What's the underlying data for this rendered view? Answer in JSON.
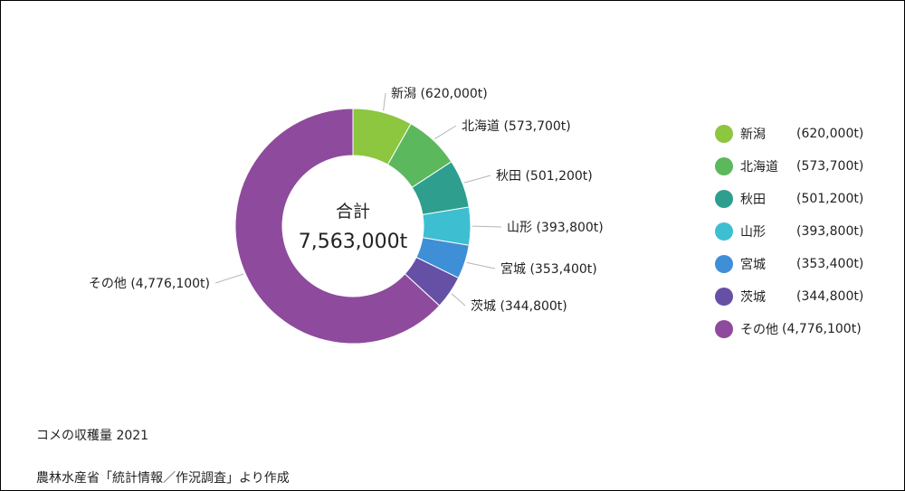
{
  "chart_data": {
    "type": "pie",
    "center_label": "合計",
    "total_label": "7,563,000t",
    "slices": [
      {
        "name": "新潟",
        "value": 620000,
        "value_label": "(620,000t)",
        "color": "#8dc63f"
      },
      {
        "name": "北海道",
        "value": 573700,
        "value_label": "(573,700t)",
        "color": "#5cb85c"
      },
      {
        "name": "秋田",
        "value": 501200,
        "value_label": "(501,200t)",
        "color": "#2e9e8f"
      },
      {
        "name": "山形",
        "value": 393800,
        "value_label": "(393,800t)",
        "color": "#3dbfd1"
      },
      {
        "name": "宮城",
        "value": 353400,
        "value_label": "(353,400t)",
        "color": "#3f8fd6"
      },
      {
        "name": "茨城",
        "value": 344800,
        "value_label": "(344,800t)",
        "color": "#6650a6"
      },
      {
        "name": "その他",
        "value": 4776100,
        "value_label": "(4,776,100t)",
        "color": "#8e4a9c"
      }
    ],
    "legend_position": "right"
  },
  "caption": {
    "title": "コメの収穫量 2021",
    "source": "農林水産省「統計情報／作況調査」より作成"
  }
}
